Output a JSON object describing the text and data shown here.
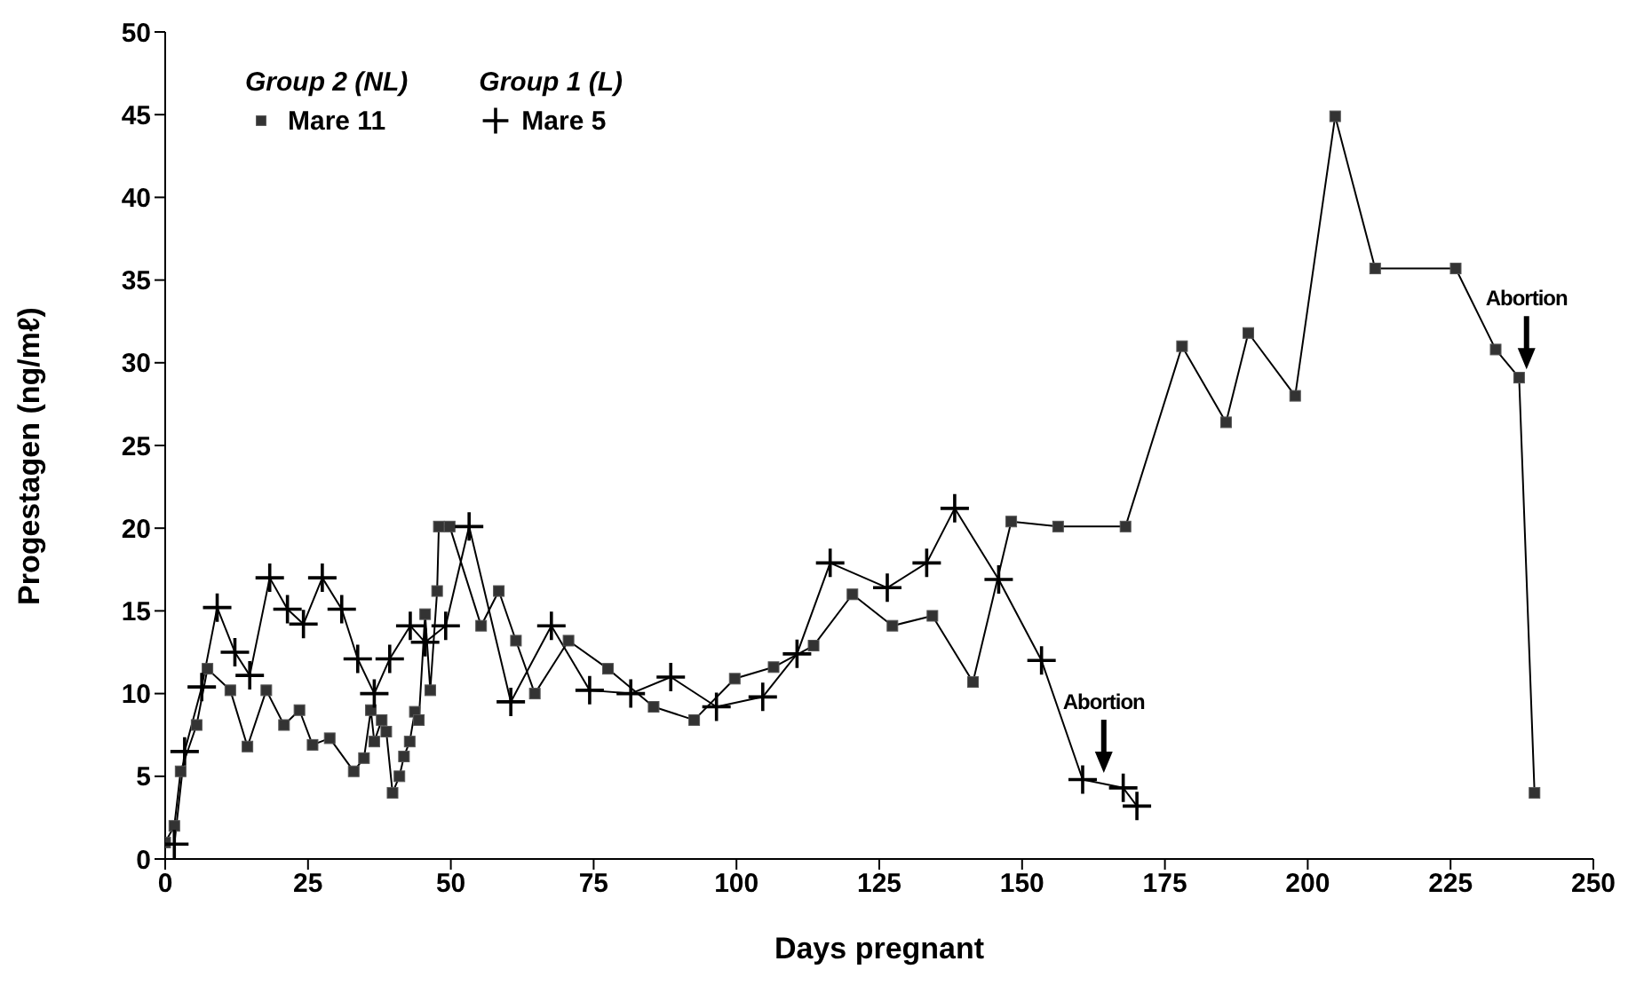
{
  "chart_data": {
    "type": "line",
    "xlabel": "Days pregnant",
    "ylabel": "Progestagen (ng/mℓ)",
    "xlim": [
      0,
      250
    ],
    "xticks": [
      0,
      25,
      50,
      75,
      100,
      125,
      150,
      175,
      200,
      225,
      250
    ],
    "ylim": [
      0,
      50
    ],
    "yticks": [
      0,
      5,
      10,
      15,
      20,
      25,
      30,
      35,
      40,
      45,
      50
    ],
    "grid": false,
    "legend": "top left",
    "line_style": "solid",
    "annotations": [
      "Group 2 (NL)",
      "Group 1 (L)",
      {
        "text": "Abortion",
        "x": 164.3,
        "y": 5.2
      },
      {
        "text": "Abortion",
        "x": 238.3,
        "y": 29.6
      }
    ],
    "series": [
      {
        "name": "Mare 11",
        "color": "#333333",
        "marker": "square",
        "x": [
          0,
          1.6,
          2.7,
          5.5,
          7.4,
          11.4,
          14.4,
          17.7,
          20.8,
          23.5,
          25.8,
          28.8,
          33,
          34.8,
          36,
          36.6,
          37.9,
          38.7,
          39.8,
          41,
          41.8,
          42.8,
          43.7,
          44.4,
          45.5,
          46.4,
          47.6,
          47.9,
          49.8,
          55.3,
          58.4,
          61.4,
          64.7,
          70.6,
          77.5,
          85.5,
          92.6,
          99.7,
          106.5,
          113.5,
          120.3,
          127.3,
          134.3,
          141.4,
          148.1,
          156.3,
          168.1,
          178,
          185.7,
          189.6,
          197.8,
          204.8,
          211.8,
          225.9,
          232.9,
          237,
          239.7
        ],
        "values": [
          1.0,
          2.0,
          5.3,
          8.1,
          11.5,
          10.2,
          6.8,
          10.2,
          8.1,
          9.0,
          6.9,
          7.3,
          5.3,
          6.1,
          9.0,
          7.1,
          8.4,
          7.7,
          4.0,
          5.0,
          6.2,
          7.1,
          8.9,
          8.4,
          14.8,
          10.2,
          16.2,
          20.1,
          20.1,
          14.1,
          16.2,
          13.2,
          10.0,
          13.2,
          11.5,
          9.2,
          8.4,
          10.9,
          11.6,
          12.9,
          16.0,
          14.1,
          14.7,
          10.7,
          20.4,
          20.1,
          20.1,
          31.0,
          26.4,
          31.8,
          28.0,
          44.9,
          35.7,
          35.7,
          30.8,
          29.1,
          4.0
        ]
      },
      {
        "name": "Mare 5",
        "color": "#000000",
        "marker": "cross",
        "x": [
          1.6,
          3.4,
          6.4,
          9.1,
          12.2,
          14.8,
          18.3,
          21.4,
          24.2,
          27.5,
          30.9,
          33.7,
          36.6,
          39.3,
          42.9,
          45.5,
          49.1,
          53.2,
          60.5,
          67.6,
          74.3,
          81.5,
          88.5,
          96.5,
          104.6,
          110.6,
          116.4,
          126.4,
          133.3,
          138.2,
          145.9,
          153.4,
          160.6,
          167.7,
          170.1
        ],
        "values": [
          0.9,
          6.5,
          10.4,
          15.2,
          12.5,
          11.1,
          17.0,
          15.1,
          14.2,
          17.0,
          15.1,
          12.1,
          10.0,
          12.1,
          14.1,
          13.1,
          14.1,
          20.1,
          9.5,
          14.1,
          10.2,
          10.0,
          11.0,
          9.2,
          9.8,
          12.4,
          17.9,
          16.4,
          17.9,
          21.2,
          16.9,
          12.0,
          4.8,
          4.3,
          3.2
        ]
      }
    ]
  }
}
